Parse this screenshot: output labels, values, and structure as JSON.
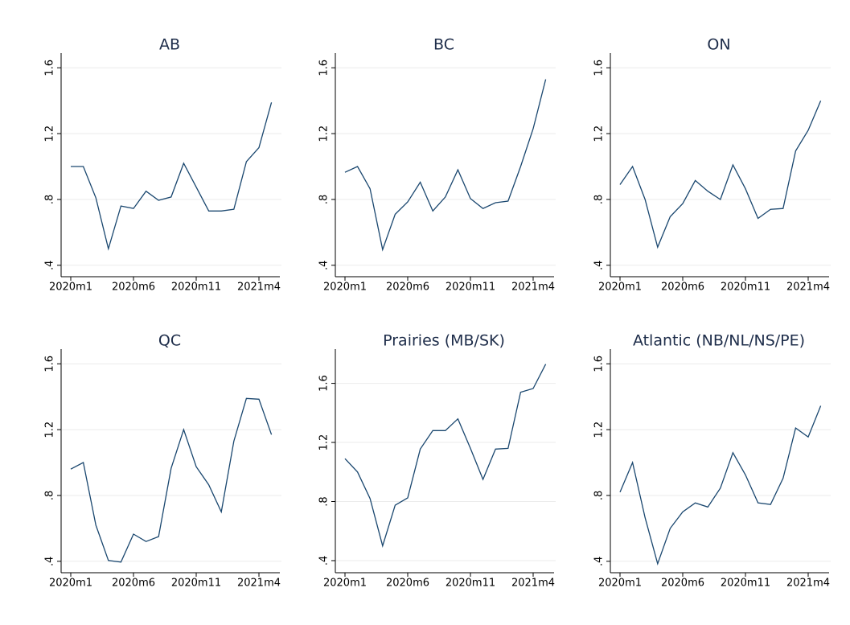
{
  "chart_data": [
    {
      "type": "line",
      "title": "AB",
      "color": "#1a476f",
      "grid": true,
      "categories": [
        "2020m1",
        null,
        null,
        null,
        null,
        "2020m6",
        null,
        null,
        null,
        null,
        "2020m11",
        null,
        null,
        null,
        null,
        "2021m4",
        null
      ],
      "values": [
        1.0,
        1.0,
        0.81,
        0.5,
        0.76,
        0.745,
        0.85,
        0.795,
        0.815,
        1.02,
        0.875,
        0.73,
        0.73,
        0.74,
        1.03,
        1.115,
        1.39
      ],
      "ylim": [
        0.35,
        1.67
      ],
      "yticks": [
        {
          "value": 0.4,
          "label": ".4"
        },
        {
          "value": 0.8,
          "label": ".8"
        },
        1.2,
        1.6
      ]
    },
    {
      "type": "line",
      "title": "BC",
      "color": "#1a476f",
      "grid": true,
      "categories": [
        "2020m1",
        null,
        null,
        null,
        null,
        "2020m6",
        null,
        null,
        null,
        null,
        "2020m11",
        null,
        null,
        null,
        null,
        "2021m4",
        null
      ],
      "values": [
        0.965,
        1.0,
        0.865,
        0.495,
        0.71,
        0.785,
        0.905,
        0.73,
        0.815,
        0.98,
        0.805,
        0.745,
        0.78,
        0.79,
        1.0,
        1.23,
        1.53
      ],
      "ylim": [
        0.35,
        1.67
      ],
      "yticks": [
        {
          "value": 0.4,
          "label": ".4"
        },
        {
          "value": 0.8,
          "label": ".8"
        },
        1.2,
        1.6
      ]
    },
    {
      "type": "line",
      "title": "ON",
      "color": "#1a476f",
      "grid": true,
      "categories": [
        "2020m1",
        null,
        null,
        null,
        null,
        "2020m6",
        null,
        null,
        null,
        null,
        "2020m11",
        null,
        null,
        null,
        null,
        "2021m4",
        null
      ],
      "values": [
        0.89,
        1.0,
        0.8,
        0.51,
        0.695,
        0.775,
        0.915,
        0.85,
        0.8,
        1.01,
        0.865,
        0.685,
        0.74,
        0.745,
        1.095,
        1.22,
        1.4
      ],
      "ylim": [
        0.35,
        1.67
      ],
      "yticks": [
        {
          "value": 0.4,
          "label": ".4"
        },
        {
          "value": 0.8,
          "label": ".8"
        },
        1.2,
        1.6
      ]
    },
    {
      "type": "line",
      "title": "QC",
      "color": "#1a476f",
      "grid": true,
      "categories": [
        "2020m1",
        null,
        null,
        null,
        null,
        "2020m6",
        null,
        null,
        null,
        null,
        "2020m11",
        null,
        null,
        null,
        null,
        "2021m4",
        null
      ],
      "values": [
        0.96,
        1.0,
        0.62,
        0.405,
        0.395,
        0.565,
        0.52,
        0.55,
        0.965,
        1.2,
        0.975,
        0.865,
        0.7,
        1.13,
        1.39,
        1.385,
        1.17
      ],
      "ylim": [
        0.35,
        1.67
      ],
      "yticks": [
        {
          "value": 0.4,
          "label": ".4"
        },
        {
          "value": 0.8,
          "label": ".8"
        },
        1.2,
        1.6
      ]
    },
    {
      "type": "line",
      "title": "Prairies (MB/SK)",
      "color": "#1a476f",
      "grid": true,
      "categories": [
        "2020m1",
        null,
        null,
        null,
        null,
        "2020m6",
        null,
        null,
        null,
        null,
        "2020m11",
        null,
        null,
        null,
        null,
        "2021m4",
        null
      ],
      "values": [
        1.09,
        1.0,
        0.82,
        0.5,
        0.775,
        0.825,
        1.155,
        1.28,
        1.28,
        1.36,
        1.16,
        0.95,
        1.155,
        1.16,
        1.54,
        1.565,
        1.73
      ],
      "ylim": [
        0.34,
        1.81
      ],
      "yticks": [
        {
          "value": 0.4,
          "label": ".4"
        },
        {
          "value": 0.8,
          "label": ".8"
        },
        1.2,
        1.6
      ]
    },
    {
      "type": "line",
      "title": "Atlantic (NB/NL/NS/PE)",
      "color": "#1a476f",
      "grid": true,
      "categories": [
        "2020m1",
        null,
        null,
        null,
        null,
        "2020m6",
        null,
        null,
        null,
        null,
        "2020m11",
        null,
        null,
        null,
        null,
        "2021m4",
        null
      ],
      "values": [
        0.82,
        1.0,
        0.665,
        0.385,
        0.6,
        0.7,
        0.755,
        0.73,
        0.845,
        1.06,
        0.925,
        0.755,
        0.745,
        0.905,
        1.21,
        1.155,
        1.345
      ],
      "ylim": [
        0.35,
        1.67
      ],
      "yticks": [
        {
          "value": 0.4,
          "label": ".4"
        },
        {
          "value": 0.8,
          "label": ".8"
        },
        1.2,
        1.6
      ]
    }
  ]
}
